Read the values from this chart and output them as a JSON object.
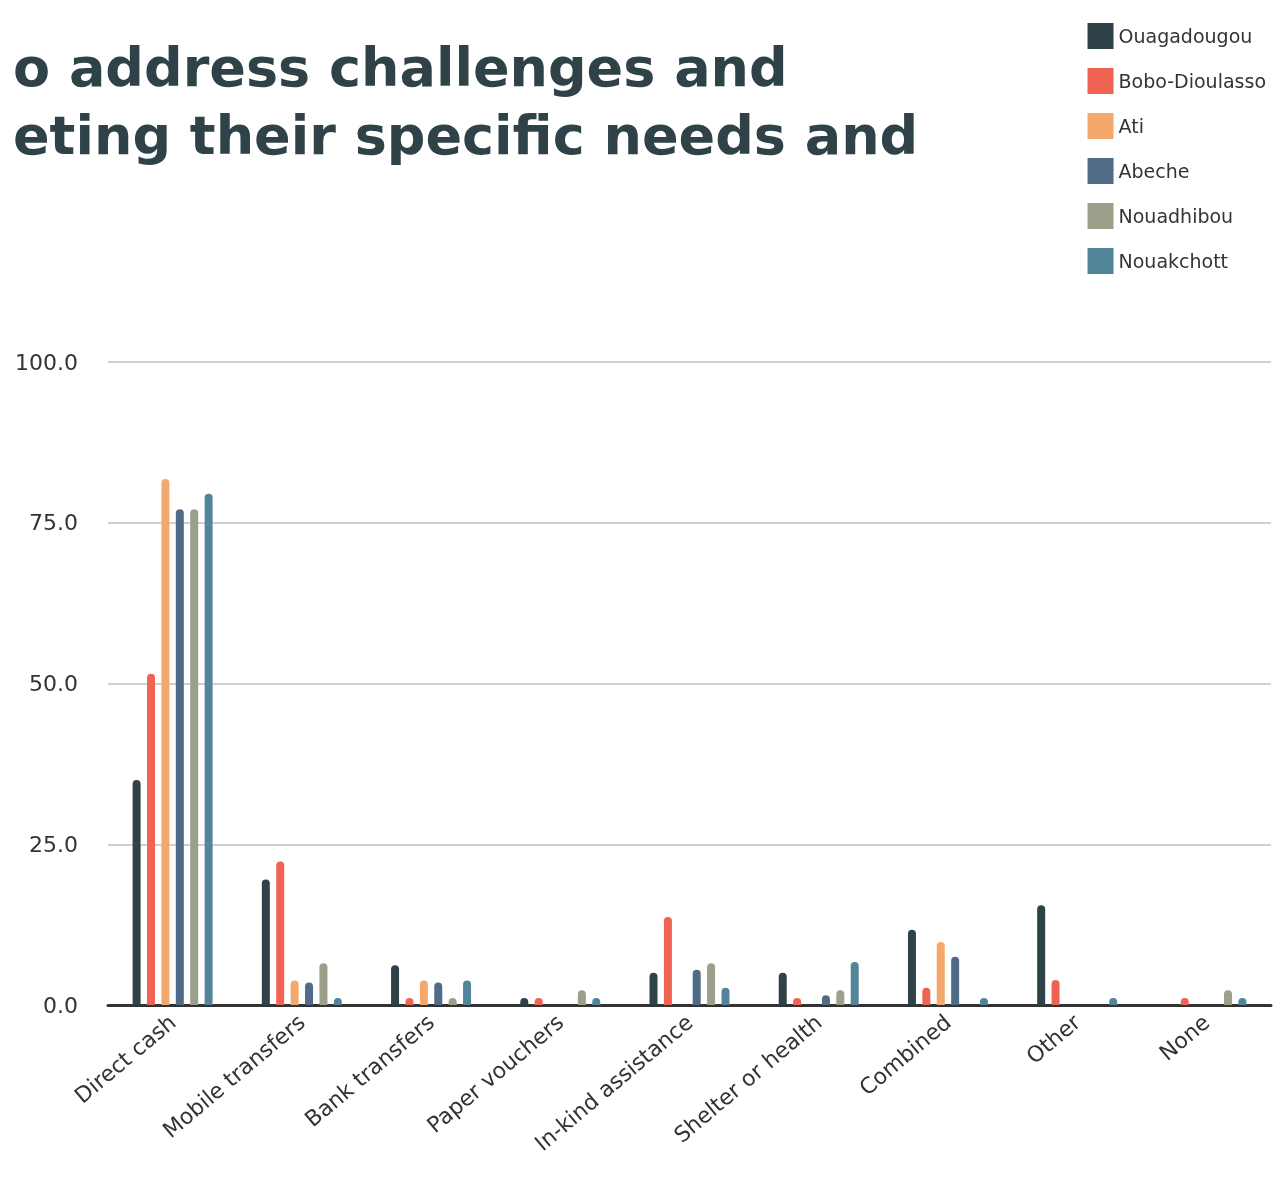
{
  "chart_data": {
    "type": "bar",
    "title": "o address challenges and\neting their specific needs and",
    "categories": [
      "Direct cash",
      "Mobile transfers",
      "Bank transfers",
      "Paper vouchers",
      "In-kind assistance",
      "Shelter or health",
      "Combined",
      "Other",
      "None"
    ],
    "series": [
      {
        "name": "Ouagadougou",
        "color": "#2f4247",
        "values": [
          35.0,
          19.5,
          6.2,
          1.1,
          5.0,
          5.0,
          11.7,
          15.5,
          0
        ]
      },
      {
        "name": "Bobo-Dioulasso",
        "color": "#ee6352",
        "values": [
          51.5,
          22.3,
          1.1,
          1.1,
          13.7,
          1.1,
          2.7,
          3.9,
          1.1
        ]
      },
      {
        "name": "Ati",
        "color": "#f5a86b",
        "values": [
          81.8,
          3.8,
          3.8,
          0,
          0,
          0,
          9.8,
          0,
          0
        ]
      },
      {
        "name": "Abeche",
        "color": "#506b86",
        "values": [
          77.1,
          3.5,
          3.5,
          0,
          5.5,
          1.5,
          7.5,
          0,
          0
        ]
      },
      {
        "name": "Nouadhibou",
        "color": "#9aa08a",
        "values": [
          77.1,
          6.5,
          1.1,
          2.3,
          6.5,
          2.3,
          0,
          0,
          2.3
        ]
      },
      {
        "name": "Nouakchott",
        "color": "#52849a",
        "values": [
          79.5,
          1.1,
          3.8,
          1.1,
          2.7,
          6.7,
          1.1,
          1.1,
          1.1
        ]
      }
    ],
    "ylim": [
      0,
      100
    ],
    "yticks": [
      {
        "value": 0,
        "label": "0.0"
      },
      {
        "value": 25,
        "label": "25.0"
      },
      {
        "value": 50,
        "label": "50.0"
      },
      {
        "value": 75,
        "label": "75.0"
      },
      {
        "value": 100,
        "label": "100.0"
      }
    ],
    "grid": "y",
    "legend": "top right"
  }
}
